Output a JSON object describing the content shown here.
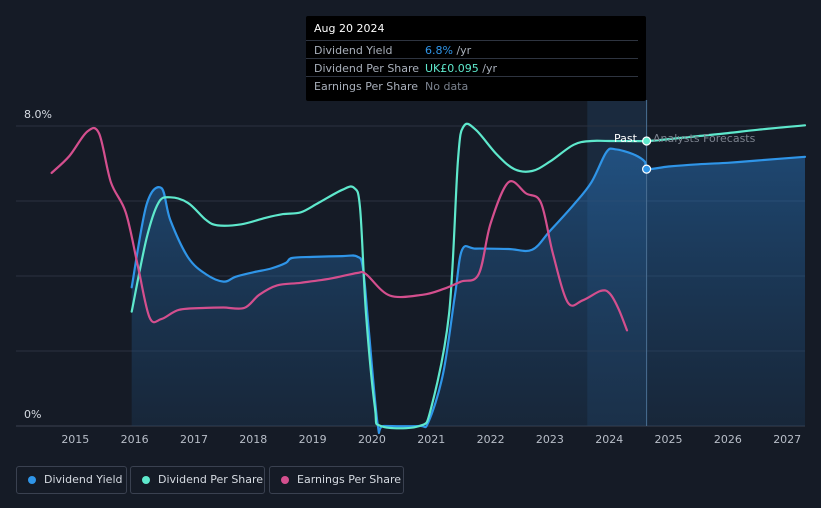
{
  "tooltip": {
    "date": "Aug 20 2024",
    "rows": [
      {
        "label": "Dividend Yield",
        "value": "6.8%",
        "unit": " /yr",
        "color": "#2f95e8"
      },
      {
        "label": "Dividend Per Share",
        "value": "UK£0.095",
        "unit": " /yr",
        "color": "#5ee8cc"
      },
      {
        "label": "Earnings Per Share",
        "value": "No data",
        "unit": "",
        "color": "#7b828e"
      }
    ]
  },
  "markers": {
    "past": "Past",
    "forecast": "Analysts Forecasts"
  },
  "legend": [
    {
      "label": "Dividend Yield",
      "color": "#2f95e8"
    },
    {
      "label": "Dividend Per Share",
      "color": "#5ee8cc"
    },
    {
      "label": "Earnings Per Share",
      "color": "#d44f8e"
    }
  ],
  "chart_data": {
    "type": "line",
    "x_ticks": [
      "2015",
      "2016",
      "2017",
      "2018",
      "2019",
      "2020",
      "2021",
      "2022",
      "2023",
      "2024",
      "2025",
      "2026",
      "2027"
    ],
    "y_labels": {
      "top": "8.0%",
      "bottom": "0%"
    },
    "ylim": [
      0,
      8.0
    ],
    "xlim": [
      2014.0,
      2027.3
    ],
    "forecast_start": 2024.63,
    "highlight_start": 2023.63,
    "series": [
      {
        "name": "Dividend Yield",
        "unit": "%",
        "color": "#2f95e8",
        "filled": true,
        "points": [
          [
            2015.95,
            3.7
          ],
          [
            2016.2,
            5.9
          ],
          [
            2016.45,
            6.35
          ],
          [
            2016.6,
            5.5
          ],
          [
            2016.9,
            4.5
          ],
          [
            2017.2,
            4.05
          ],
          [
            2017.5,
            3.85
          ],
          [
            2017.7,
            3.98
          ],
          [
            2018.0,
            4.1
          ],
          [
            2018.3,
            4.2
          ],
          [
            2018.55,
            4.35
          ],
          [
            2018.65,
            4.48
          ],
          [
            2019.0,
            4.51
          ],
          [
            2019.5,
            4.53
          ],
          [
            2019.75,
            4.52
          ],
          [
            2019.85,
            4.2
          ],
          [
            2019.95,
            2.5
          ],
          [
            2020.1,
            0.0
          ],
          [
            2020.2,
            0.0
          ],
          [
            2020.8,
            0.0
          ],
          [
            2020.95,
            0.1
          ],
          [
            2021.2,
            1.4
          ],
          [
            2021.4,
            3.5
          ],
          [
            2021.52,
            4.7
          ],
          [
            2021.75,
            4.73
          ],
          [
            2022.3,
            4.72
          ],
          [
            2022.7,
            4.7
          ],
          [
            2023.0,
            5.2
          ],
          [
            2023.4,
            5.9
          ],
          [
            2023.7,
            6.5
          ],
          [
            2023.95,
            7.3
          ],
          [
            2024.1,
            7.38
          ],
          [
            2024.4,
            7.25
          ],
          [
            2024.6,
            7.05
          ],
          [
            2024.63,
            6.85
          ],
          [
            2025.0,
            6.92
          ],
          [
            2025.5,
            6.98
          ],
          [
            2026.0,
            7.02
          ],
          [
            2026.5,
            7.08
          ],
          [
            2027.3,
            7.18
          ]
        ]
      },
      {
        "name": "Dividend Per Share",
        "unit": "UK£",
        "color": "#5ee8cc",
        "filled": false,
        "points": [
          [
            2015.95,
            3.05
          ],
          [
            2016.2,
            5.0
          ],
          [
            2016.4,
            5.95
          ],
          [
            2016.6,
            6.1
          ],
          [
            2016.9,
            5.95
          ],
          [
            2017.2,
            5.5
          ],
          [
            2017.4,
            5.35
          ],
          [
            2017.8,
            5.38
          ],
          [
            2018.2,
            5.55
          ],
          [
            2018.5,
            5.65
          ],
          [
            2018.8,
            5.7
          ],
          [
            2019.1,
            5.95
          ],
          [
            2019.5,
            6.3
          ],
          [
            2019.7,
            6.35
          ],
          [
            2019.8,
            5.8
          ],
          [
            2019.9,
            3.0
          ],
          [
            2020.05,
            0.5
          ],
          [
            2020.15,
            0.0
          ],
          [
            2020.8,
            0.0
          ],
          [
            2021.0,
            0.5
          ],
          [
            2021.3,
            3.0
          ],
          [
            2021.45,
            7.1
          ],
          [
            2021.55,
            8.0
          ],
          [
            2021.75,
            7.9
          ],
          [
            2022.1,
            7.25
          ],
          [
            2022.4,
            6.85
          ],
          [
            2022.7,
            6.8
          ],
          [
            2023.0,
            7.05
          ],
          [
            2023.4,
            7.5
          ],
          [
            2023.7,
            7.6
          ],
          [
            2024.0,
            7.6
          ],
          [
            2024.63,
            7.6
          ],
          [
            2025.0,
            7.65
          ],
          [
            2025.5,
            7.73
          ],
          [
            2026.0,
            7.81
          ],
          [
            2026.5,
            7.9
          ],
          [
            2027.3,
            8.02
          ]
        ]
      },
      {
        "name": "Earnings Per Share",
        "unit": "",
        "color": "#d44f8e",
        "filled": false,
        "points": [
          [
            2014.6,
            6.75
          ],
          [
            2014.9,
            7.2
          ],
          [
            2015.2,
            7.85
          ],
          [
            2015.4,
            7.8
          ],
          [
            2015.6,
            6.5
          ],
          [
            2015.85,
            5.7
          ],
          [
            2016.05,
            4.3
          ],
          [
            2016.25,
            2.9
          ],
          [
            2016.45,
            2.85
          ],
          [
            2016.75,
            3.1
          ],
          [
            2017.2,
            3.15
          ],
          [
            2017.5,
            3.16
          ],
          [
            2017.85,
            3.15
          ],
          [
            2018.1,
            3.5
          ],
          [
            2018.4,
            3.75
          ],
          [
            2018.8,
            3.82
          ],
          [
            2019.3,
            3.93
          ],
          [
            2019.75,
            4.08
          ],
          [
            2019.9,
            4.05
          ],
          [
            2020.3,
            3.48
          ],
          [
            2020.85,
            3.5
          ],
          [
            2021.2,
            3.65
          ],
          [
            2021.5,
            3.85
          ],
          [
            2021.8,
            4.05
          ],
          [
            2022.0,
            5.4
          ],
          [
            2022.3,
            6.5
          ],
          [
            2022.6,
            6.2
          ],
          [
            2022.85,
            5.95
          ],
          [
            2023.05,
            4.6
          ],
          [
            2023.3,
            3.3
          ],
          [
            2023.55,
            3.35
          ],
          [
            2023.85,
            3.6
          ],
          [
            2024.0,
            3.55
          ],
          [
            2024.15,
            3.15
          ],
          [
            2024.3,
            2.55
          ]
        ]
      }
    ]
  }
}
